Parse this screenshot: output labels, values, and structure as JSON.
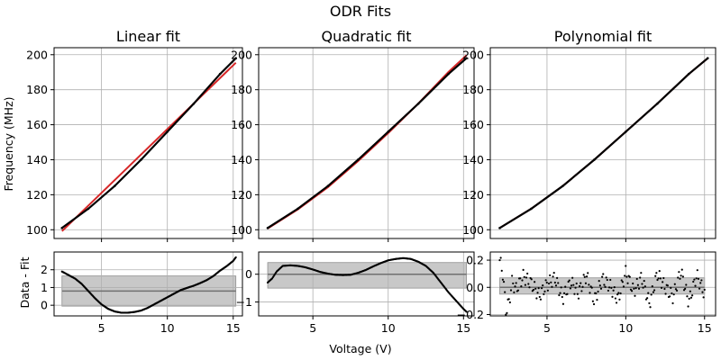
{
  "figure": {
    "title": "ODR Fits",
    "xlabel": "Voltage (V)",
    "ylabel_top": "Frequency (MHz)",
    "ylabel_bottom": "Data - Fit"
  },
  "colors": {
    "data": "#000000",
    "fit": "#d62728",
    "band": "#c8c8c8",
    "mean_line": "#707070"
  },
  "chart_data": [
    {
      "type": "scatter",
      "title": "Linear fit",
      "xlim": [
        1.4,
        15.7
      ],
      "ylim": [
        95,
        204
      ],
      "xticks": [
        5,
        10,
        15
      ],
      "yticks": [
        100,
        120,
        140,
        160,
        180,
        200
      ],
      "grid": true,
      "series": [
        {
          "kind": "data",
          "x": [
            2,
            4,
            6,
            8,
            10,
            12,
            14,
            15.2
          ],
          "y": [
            101,
            112,
            125,
            140,
            156,
            172,
            189,
            198
          ]
        },
        {
          "kind": "fit",
          "x": [
            2,
            15.2
          ],
          "y": [
            99.2,
            195.4
          ]
        }
      ]
    },
    {
      "type": "scatter",
      "title": "Quadratic fit",
      "xlim": [
        1.4,
        15.7
      ],
      "ylim": [
        95,
        204
      ],
      "xticks": [
        5,
        10,
        15
      ],
      "yticks": [
        100,
        120,
        140,
        160,
        180,
        200
      ],
      "grid": true,
      "series": [
        {
          "kind": "data",
          "x": [
            2,
            4,
            6,
            8,
            10,
            12,
            14,
            15.2
          ],
          "y": [
            101,
            112,
            125,
            140,
            156,
            172,
            189,
            198
          ]
        },
        {
          "kind": "fit",
          "x": [
            2,
            4,
            6,
            8,
            10,
            12,
            14,
            15.2
          ],
          "y": [
            100.7,
            111.6,
            124.3,
            139.2,
            155.2,
            172.1,
            190.1,
            199.7
          ]
        }
      ]
    },
    {
      "type": "scatter",
      "title": "Polynomial fit",
      "xlim": [
        1.4,
        15.7
      ],
      "ylim": [
        95,
        204
      ],
      "xticks": [
        5,
        10,
        15
      ],
      "yticks": [
        100,
        120,
        140,
        160,
        180,
        200
      ],
      "grid": true,
      "series": [
        {
          "kind": "data",
          "x": [
            2,
            4,
            6,
            8,
            10,
            12,
            14,
            15.2
          ],
          "y": [
            101,
            112,
            125,
            140,
            156,
            172,
            189,
            198
          ]
        },
        {
          "kind": "fit",
          "x": [
            2,
            4,
            6,
            8,
            10,
            12,
            14,
            15.2
          ],
          "y": [
            101,
            112,
            125,
            140,
            156,
            172,
            189,
            198
          ]
        }
      ]
    },
    {
      "type": "scatter",
      "title": "",
      "xlim": [
        1.4,
        15.7
      ],
      "ylim": [
        -0.6,
        3.0
      ],
      "xticks": [
        5,
        10,
        15
      ],
      "yticks": [
        0,
        1,
        2
      ],
      "grid": true,
      "residuals": {
        "x": [
          2,
          2.5,
          3,
          3.5,
          4,
          4.5,
          5,
          5.5,
          6,
          6.5,
          7,
          7.5,
          8,
          8.5,
          9,
          9.5,
          10,
          10.5,
          11,
          11.5,
          12,
          12.5,
          13,
          13.5,
          14,
          14.5,
          15,
          15.2
        ],
        "y": [
          1.9,
          1.7,
          1.5,
          1.2,
          0.8,
          0.4,
          0.05,
          -0.2,
          -0.35,
          -0.42,
          -0.42,
          -0.38,
          -0.3,
          -0.15,
          0.05,
          0.25,
          0.45,
          0.65,
          0.85,
          0.98,
          1.1,
          1.25,
          1.42,
          1.65,
          1.95,
          2.2,
          2.5,
          2.7
        ]
      },
      "mean": 0.8,
      "band": [
        -0.05,
        1.65
      ]
    },
    {
      "type": "scatter",
      "title": "",
      "xlim": [
        1.4,
        15.7
      ],
      "ylim": [
        -1.5,
        0.8
      ],
      "xticks": [
        5,
        10,
        15
      ],
      "yticks": [
        -1,
        0
      ],
      "grid": true,
      "residuals": {
        "x": [
          2,
          2.3,
          2.6,
          3,
          3.5,
          4,
          4.5,
          5,
          5.5,
          6,
          6.5,
          7,
          7.5,
          8,
          8.5,
          9,
          9.5,
          10,
          10.5,
          11,
          11.5,
          12,
          12.5,
          13,
          13.5,
          14,
          14.5,
          15,
          15.2
        ],
        "y": [
          -0.3,
          -0.15,
          0.1,
          0.3,
          0.32,
          0.3,
          0.25,
          0.17,
          0.08,
          0.02,
          -0.02,
          -0.03,
          -0.02,
          0.05,
          0.15,
          0.28,
          0.4,
          0.5,
          0.55,
          0.58,
          0.55,
          0.45,
          0.3,
          0.05,
          -0.3,
          -0.65,
          -0.95,
          -1.25,
          -1.35
        ]
      },
      "mean": 0.0,
      "band": [
        -0.5,
        0.42
      ]
    },
    {
      "type": "scatter",
      "title": "",
      "xlim": [
        1.4,
        15.7
      ],
      "ylim": [
        -0.21,
        0.26
      ],
      "xticks": [
        5,
        10,
        15
      ],
      "yticks": [
        -0.2,
        0.0,
        0.2
      ],
      "ytick_labels": [
        "−0.2",
        "0.0",
        "0.2"
      ],
      "grid": true,
      "residuals": {
        "x": [
          2,
          2.2,
          2.4,
          2.6,
          2.8,
          3,
          3.5,
          4,
          4.5,
          5,
          5.5,
          6,
          6.5,
          7,
          7.5,
          8,
          8.5,
          9,
          9.5,
          10,
          10.5,
          11,
          11.5,
          12,
          12.5,
          13,
          13.5,
          14,
          14.5,
          15
        ],
        "y": [
          0.2,
          0.1,
          -0.18,
          -0.1,
          0.05,
          -0.02,
          0.08,
          0.03,
          -0.06,
          0.02,
          0.07,
          -0.08,
          0.04,
          -0.04,
          0.09,
          -0.1,
          0.06,
          0.01,
          -0.09,
          0.11,
          -0.03,
          0.07,
          -0.12,
          0.1,
          0.0,
          -0.07,
          0.12,
          -0.11,
          0.09,
          -0.05
        ]
      },
      "mean": 0.0,
      "band": [
        -0.05,
        0.07
      ]
    }
  ]
}
